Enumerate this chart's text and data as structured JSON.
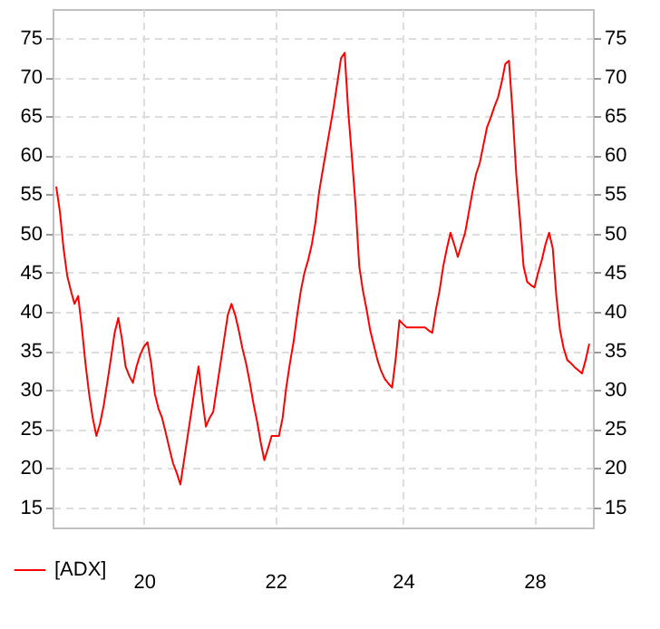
{
  "chart_data": {
    "type": "line",
    "categories": [
      null,
      null,
      null,
      null,
      null,
      null,
      null,
      null,
      null,
      null,
      null,
      null,
      null,
      null,
      null,
      null,
      null,
      null,
      null,
      null,
      null,
      null,
      null,
      null,
      "20",
      null,
      null,
      null,
      null,
      null,
      null,
      null,
      null,
      null,
      null,
      null,
      null,
      null,
      null,
      null,
      null,
      null,
      null,
      null,
      null,
      null,
      null,
      null,
      null,
      null,
      null,
      null,
      null,
      null,
      null,
      null,
      null,
      null,
      null,
      null,
      "22",
      null,
      null,
      null,
      null,
      null,
      null,
      null,
      null,
      null,
      null,
      null,
      null,
      null,
      null,
      null,
      null,
      null,
      null,
      null,
      null,
      null,
      null,
      null,
      null,
      null,
      null,
      null,
      null,
      null,
      null,
      null,
      null,
      null,
      null,
      "24",
      null,
      null,
      null,
      null,
      null,
      null,
      null,
      null,
      null,
      null,
      null,
      null,
      null,
      null,
      null,
      null,
      null,
      null,
      null,
      null,
      null,
      null,
      null,
      null,
      null,
      null,
      null,
      null,
      null,
      null,
      null,
      null,
      null,
      null,
      null,
      "28",
      null,
      null,
      null,
      null,
      null,
      null,
      null,
      null,
      null,
      null,
      null,
      null,
      null,
      null,
      null
    ],
    "series": [
      {
        "name": "[ADX]",
        "color": "#ff0000",
        "values": [
          56,
          52.8,
          48.1,
          44.6,
          42.7,
          41,
          42,
          38,
          33.4,
          29.5,
          26.4,
          24.1,
          25.7,
          28,
          31,
          34.1,
          37.3,
          39.2,
          36.5,
          33,
          31.8,
          30.9,
          33,
          34.5,
          35.5,
          36.1,
          33.4,
          29.5,
          27.6,
          26.4,
          24.5,
          22.5,
          20.6,
          19.4,
          17.9,
          21,
          24.1,
          27.2,
          30.3,
          33,
          28.8,
          25.3,
          26.4,
          27.2,
          30.3,
          33.4,
          36.5,
          39.6,
          41,
          39.6,
          37.6,
          35.3,
          33.4,
          31,
          28.3,
          26,
          23.3,
          21,
          22.5,
          24.1,
          24.1,
          24.1,
          26.4,
          30.3,
          33.4,
          36.1,
          39.6,
          42.7,
          45,
          46.6,
          48.6,
          51.4,
          55.3,
          58.1,
          60.8,
          63.5,
          66.2,
          69.3,
          72.4,
          73.1,
          65.5,
          59.7,
          53.5,
          45.8,
          42.7,
          40.3,
          37.6,
          35.7,
          33.8,
          32.4,
          31.4,
          30.8,
          30.3,
          34.1,
          38.9,
          38.4,
          38,
          38,
          38,
          38,
          38,
          38,
          37.6,
          37.3,
          40.3,
          42.7,
          45.8,
          48.1,
          50.1,
          48.6,
          47,
          48.6,
          50.1,
          52.7,
          55.3,
          57.6,
          59,
          61.3,
          63.6,
          64.8,
          66.2,
          67.4,
          69.3,
          71.7,
          72.1,
          65.5,
          57.6,
          52,
          45.8,
          43.8,
          43.4,
          43.1,
          45,
          46.6,
          48.6,
          50.1,
          48.1,
          41.9,
          37.6,
          35.3,
          33.8,
          33.4,
          32.9,
          32.5,
          32.1,
          33.8,
          35.9
        ]
      }
    ],
    "ylim": [
      12.4,
      78.7
    ],
    "yticks": [
      15,
      20,
      25,
      30,
      35,
      40,
      45,
      50,
      55,
      60,
      65,
      70,
      75
    ],
    "y2lim": [
      12.4,
      78.7
    ],
    "y2ticks": [
      15,
      20,
      25,
      30,
      35,
      40,
      45,
      50,
      55,
      60,
      65,
      70,
      75
    ],
    "grid": true,
    "legend": "bottom",
    "marker": "none",
    "line_style": "solid"
  }
}
